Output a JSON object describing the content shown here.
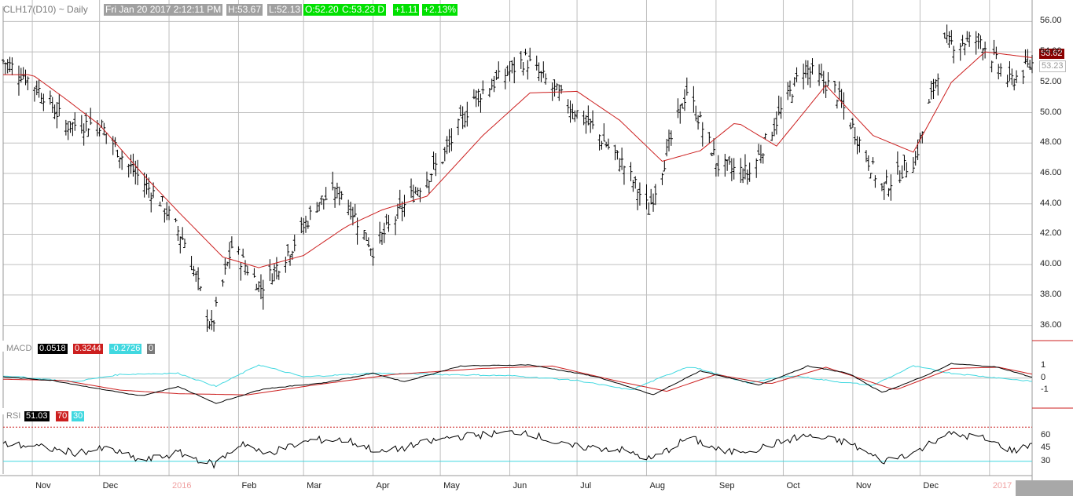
{
  "header": {
    "symbol": "CLH17(D10) ~ Daily",
    "datetime": "Fri Jan 20 2017 2:12:11 PM",
    "high": "H:53.67",
    "low": "L:52.13",
    "open": "O:52.20",
    "close": "C:53.23 D",
    "change": "+1.11",
    "change_pct": "+2.13%"
  },
  "price_tags": {
    "ma": "53.62",
    "close": "53.23"
  },
  "indicator_labels": {
    "macd": "MACD",
    "macd_value": "0.0518",
    "signal_value": "0.3244",
    "hist_value": "-0.2726",
    "zero_value": "0",
    "rsi": "RSI",
    "rsi_value": "51.03",
    "rsi_upper": "70",
    "rsi_lower": "30"
  },
  "colors": {
    "price": "#000000",
    "moving_average": "#cc1f1f",
    "macd_line": "#000000",
    "signal_line": "#cc1f1f",
    "histogram_line": "#40d8e0",
    "rsi_line": "#000000",
    "rsi_upper": "#cc1f1f",
    "rsi_lower": "#40d8e0",
    "grid": "#bfbfbf",
    "header_bg": "#a0a0a0",
    "header_up_bg": "#00e000",
    "ma_tag_bg": "#8b0000"
  },
  "chart_data": [
    {
      "type": "ohlc",
      "title": "CLH17(D10) ~ Daily",
      "ylim": [
        35,
        57
      ],
      "y_ticks": [
        "56.00",
        "54.00",
        "52.00",
        "50.00",
        "48.00",
        "46.00",
        "44.00",
        "42.00",
        "40.00",
        "38.00",
        "36.00"
      ],
      "x_tick_labels": [
        "Nov",
        "Dec",
        "2016",
        "Feb",
        "Mar",
        "Apr",
        "May",
        "Jun",
        "Jul",
        "Aug",
        "Sep",
        "Oct",
        "Nov",
        "Dec",
        "2017"
      ],
      "x_range": [
        "2015-10-19",
        "2017-01-20"
      ],
      "grid": true,
      "series": [
        {
          "name": "Price",
          "anchors": [
            {
              "date": "2015-10-19",
              "value": 53.4
            },
            {
              "date": "2015-10-28",
              "value": 52.5
            },
            {
              "date": "2015-11-06",
              "value": 51.2
            },
            {
              "date": "2015-11-16",
              "value": 49.2
            },
            {
              "date": "2015-12-01",
              "value": 49.3
            },
            {
              "date": "2015-12-14",
              "value": 46.5
            },
            {
              "date": "2015-12-28",
              "value": 44.2
            },
            {
              "date": "2016-01-08",
              "value": 41.5
            },
            {
              "date": "2016-01-20",
              "value": 35.8
            },
            {
              "date": "2016-01-29",
              "value": 41.2
            },
            {
              "date": "2016-02-11",
              "value": 38.5
            },
            {
              "date": "2016-02-24",
              "value": 41.0
            },
            {
              "date": "2016-03-08",
              "value": 44.2
            },
            {
              "date": "2016-03-18",
              "value": 44.8
            },
            {
              "date": "2016-04-01",
              "value": 41.0
            },
            {
              "date": "2016-04-18",
              "value": 44.5
            },
            {
              "date": "2016-05-02",
              "value": 47.0
            },
            {
              "date": "2016-05-16",
              "value": 51.0
            },
            {
              "date": "2016-06-08",
              "value": 53.5
            },
            {
              "date": "2016-06-24",
              "value": 51.0
            },
            {
              "date": "2016-07-08",
              "value": 49.0
            },
            {
              "date": "2016-07-22",
              "value": 46.5
            },
            {
              "date": "2016-08-02",
              "value": 43.6
            },
            {
              "date": "2016-08-19",
              "value": 51.5
            },
            {
              "date": "2016-09-02",
              "value": 46.5
            },
            {
              "date": "2016-09-16",
              "value": 46.0
            },
            {
              "date": "2016-10-10",
              "value": 53.0
            },
            {
              "date": "2016-10-24",
              "value": 51.5
            },
            {
              "date": "2016-11-14",
              "value": 45.0
            },
            {
              "date": "2016-11-29",
              "value": 47.0
            },
            {
              "date": "2016-12-12",
              "value": 54.5
            },
            {
              "date": "2016-12-28",
              "value": 54.8
            },
            {
              "date": "2017-01-10",
              "value": 52.0
            },
            {
              "date": "2017-01-20",
              "value": 53.23
            }
          ]
        },
        {
          "name": "Moving average",
          "anchors": [
            {
              "date": "2015-10-19",
              "value": 52.5
            },
            {
              "date": "2015-11-01",
              "value": 52.5
            },
            {
              "date": "2015-11-15",
              "value": 51.0
            },
            {
              "date": "2015-12-01",
              "value": 49.2
            },
            {
              "date": "2015-12-20",
              "value": 46.0
            },
            {
              "date": "2016-01-05",
              "value": 43.5
            },
            {
              "date": "2016-01-25",
              "value": 40.5
            },
            {
              "date": "2016-02-10",
              "value": 39.8
            },
            {
              "date": "2016-03-01",
              "value": 40.6
            },
            {
              "date": "2016-03-20",
              "value": 42.5
            },
            {
              "date": "2016-04-05",
              "value": 43.6
            },
            {
              "date": "2016-04-25",
              "value": 44.5
            },
            {
              "date": "2016-05-20",
              "value": 48.5
            },
            {
              "date": "2016-06-10",
              "value": 51.3
            },
            {
              "date": "2016-07-01",
              "value": 51.4
            },
            {
              "date": "2016-07-20",
              "value": 49.5
            },
            {
              "date": "2016-08-08",
              "value": 46.8
            },
            {
              "date": "2016-08-25",
              "value": 47.5
            },
            {
              "date": "2016-09-10",
              "value": 49.4
            },
            {
              "date": "2016-09-28",
              "value": 47.8
            },
            {
              "date": "2016-10-20",
              "value": 51.8
            },
            {
              "date": "2016-11-10",
              "value": 48.5
            },
            {
              "date": "2016-11-28",
              "value": 47.4
            },
            {
              "date": "2016-12-15",
              "value": 52.0
            },
            {
              "date": "2016-12-30",
              "value": 54.0
            },
            {
              "date": "2017-01-20",
              "value": 53.62
            }
          ]
        }
      ]
    },
    {
      "type": "line",
      "title": "MACD",
      "ylim": [
        -2.5,
        2.2
      ],
      "y_ticks": [
        "1",
        "0",
        "-1"
      ],
      "series": [
        {
          "name": "MACD",
          "anchors": [
            {
              "date": "2015-10-19",
              "value": 0.1
            },
            {
              "date": "2015-11-10",
              "value": -0.2
            },
            {
              "date": "2015-12-01",
              "value": -0.9
            },
            {
              "date": "2015-12-20",
              "value": -1.5
            },
            {
              "date": "2016-01-05",
              "value": -0.7
            },
            {
              "date": "2016-01-22",
              "value": -2.1
            },
            {
              "date": "2016-02-12",
              "value": -0.9
            },
            {
              "date": "2016-03-10",
              "value": -0.4
            },
            {
              "date": "2016-04-01",
              "value": 0.4
            },
            {
              "date": "2016-04-15",
              "value": -0.3
            },
            {
              "date": "2016-05-10",
              "value": 1.0
            },
            {
              "date": "2016-06-10",
              "value": 1.1
            },
            {
              "date": "2016-07-10",
              "value": 0.1
            },
            {
              "date": "2016-08-04",
              "value": -1.4
            },
            {
              "date": "2016-08-25",
              "value": 0.6
            },
            {
              "date": "2016-09-20",
              "value": -0.6
            },
            {
              "date": "2016-10-12",
              "value": 1.0
            },
            {
              "date": "2016-10-30",
              "value": 0.4
            },
            {
              "date": "2016-11-14",
              "value": -1.2
            },
            {
              "date": "2016-12-01",
              "value": 0.0
            },
            {
              "date": "2016-12-15",
              "value": 1.2
            },
            {
              "date": "2017-01-05",
              "value": 0.9
            },
            {
              "date": "2017-01-20",
              "value": 0.0518
            }
          ]
        },
        {
          "name": "Signal",
          "anchors": [
            {
              "date": "2015-10-19",
              "value": -0.1
            },
            {
              "date": "2015-11-15",
              "value": -0.2
            },
            {
              "date": "2015-12-10",
              "value": -1.0
            },
            {
              "date": "2016-01-05",
              "value": -1.3
            },
            {
              "date": "2016-02-05",
              "value": -1.4
            },
            {
              "date": "2016-03-05",
              "value": -0.6
            },
            {
              "date": "2016-04-10",
              "value": 0.3
            },
            {
              "date": "2016-05-20",
              "value": 0.8
            },
            {
              "date": "2016-06-20",
              "value": 1.0
            },
            {
              "date": "2016-07-20",
              "value": -0.3
            },
            {
              "date": "2016-08-10",
              "value": -1.1
            },
            {
              "date": "2016-09-01",
              "value": 0.3
            },
            {
              "date": "2016-09-25",
              "value": -0.5
            },
            {
              "date": "2016-10-20",
              "value": 0.9
            },
            {
              "date": "2016-11-20",
              "value": -1.0
            },
            {
              "date": "2016-12-15",
              "value": 0.8
            },
            {
              "date": "2017-01-05",
              "value": 0.9
            },
            {
              "date": "2017-01-20",
              "value": 0.3244
            }
          ]
        },
        {
          "name": "Histogram",
          "anchors": [
            {
              "date": "2015-10-19",
              "value": 0.2
            },
            {
              "date": "2015-11-20",
              "value": -0.3
            },
            {
              "date": "2015-12-10",
              "value": 0.3
            },
            {
              "date": "2016-01-05",
              "value": 0.4
            },
            {
              "date": "2016-01-22",
              "value": -0.7
            },
            {
              "date": "2016-02-10",
              "value": 1.1
            },
            {
              "date": "2016-03-01",
              "value": 0.1
            },
            {
              "date": "2016-04-01",
              "value": 0.4
            },
            {
              "date": "2016-05-01",
              "value": 0.3
            },
            {
              "date": "2016-06-01",
              "value": 0.2
            },
            {
              "date": "2016-07-01",
              "value": -0.2
            },
            {
              "date": "2016-07-25",
              "value": -1.0
            },
            {
              "date": "2016-08-20",
              "value": 1.0
            },
            {
              "date": "2016-09-15",
              "value": -0.4
            },
            {
              "date": "2016-10-05",
              "value": 0.2
            },
            {
              "date": "2016-10-25",
              "value": -0.3
            },
            {
              "date": "2016-11-10",
              "value": -0.6
            },
            {
              "date": "2016-11-28",
              "value": 1.0
            },
            {
              "date": "2016-12-15",
              "value": 0.4
            },
            {
              "date": "2017-01-20",
              "value": -0.2726
            }
          ]
        }
      ]
    },
    {
      "type": "line",
      "title": "RSI",
      "ylim": [
        15,
        85
      ],
      "y_ticks": [
        "60",
        "45",
        "30"
      ],
      "reference_lines": [
        70,
        30
      ],
      "series": [
        {
          "name": "RSI",
          "anchors": [
            {
              "date": "2015-10-19",
              "value": 50
            },
            {
              "date": "2015-11-01",
              "value": 48
            },
            {
              "date": "2015-11-20",
              "value": 40
            },
            {
              "date": "2015-12-05",
              "value": 45
            },
            {
              "date": "2015-12-20",
              "value": 30
            },
            {
              "date": "2016-01-05",
              "value": 40
            },
            {
              "date": "2016-01-21",
              "value": 26
            },
            {
              "date": "2016-02-03",
              "value": 52
            },
            {
              "date": "2016-02-12",
              "value": 38
            },
            {
              "date": "2016-03-05",
              "value": 55
            },
            {
              "date": "2016-03-20",
              "value": 55
            },
            {
              "date": "2016-04-05",
              "value": 40
            },
            {
              "date": "2016-05-05",
              "value": 58
            },
            {
              "date": "2016-06-08",
              "value": 65
            },
            {
              "date": "2016-06-25",
              "value": 48
            },
            {
              "date": "2016-07-20",
              "value": 44
            },
            {
              "date": "2016-08-03",
              "value": 32
            },
            {
              "date": "2016-08-20",
              "value": 58
            },
            {
              "date": "2016-09-05",
              "value": 40
            },
            {
              "date": "2016-09-20",
              "value": 45
            },
            {
              "date": "2016-10-10",
              "value": 60
            },
            {
              "date": "2016-10-30",
              "value": 52
            },
            {
              "date": "2016-11-14",
              "value": 30
            },
            {
              "date": "2016-11-30",
              "value": 42
            },
            {
              "date": "2016-12-12",
              "value": 62
            },
            {
              "date": "2016-12-28",
              "value": 58
            },
            {
              "date": "2017-01-12",
              "value": 42
            },
            {
              "date": "2017-01-20",
              "value": 51.03
            }
          ]
        }
      ]
    }
  ]
}
